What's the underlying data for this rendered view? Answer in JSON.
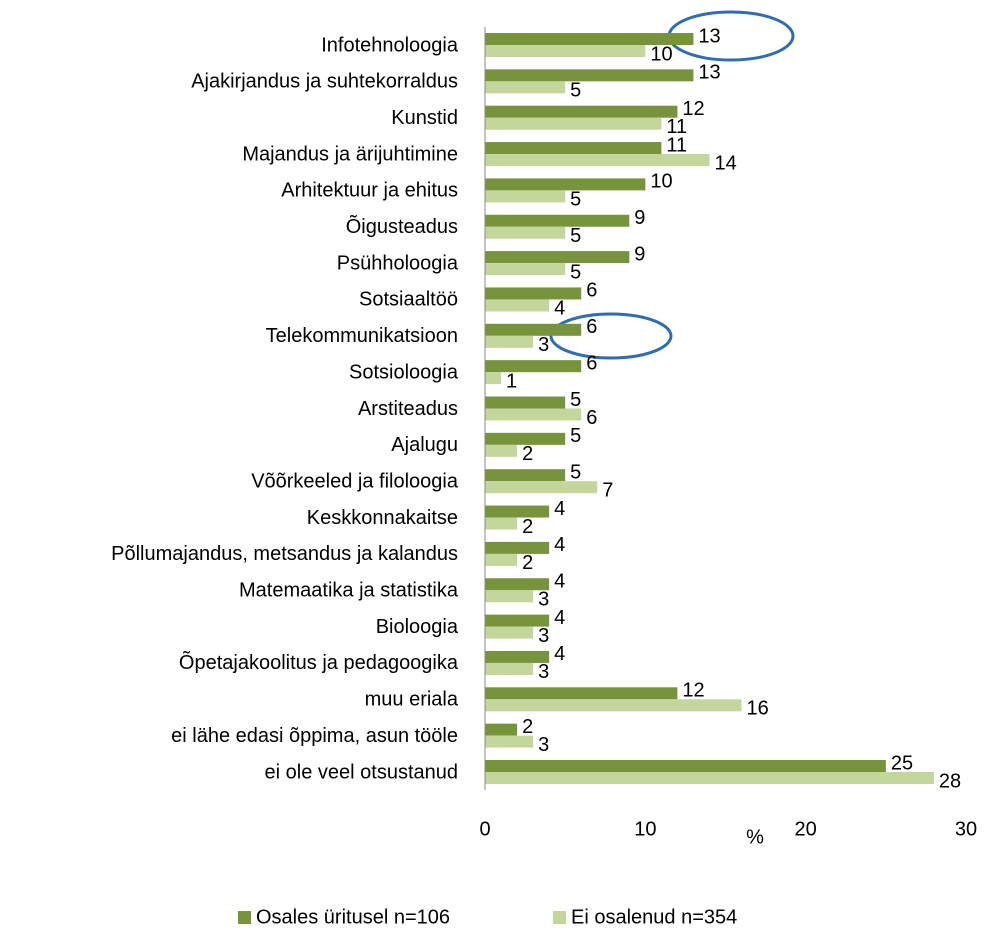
{
  "chart_data": {
    "type": "bar",
    "orientation": "horizontal",
    "categories": [
      "Infotehnoloogia",
      "Ajakirjandus ja suhtekorraldus",
      "Kunstid",
      "Majandus ja ärijuhtimine",
      "Arhitektuur ja ehitus",
      "Õigusteadus",
      "Psühholoogia",
      "Sotsiaaltöö",
      "Telekommunikatsioon",
      "Sotsioloogia",
      "Arstiteadus",
      "Ajalugu",
      "Võõrkeeled ja filoloogia",
      "Keskkonnakaitse",
      "Põllumajandus, metsandus ja kalandus",
      "Matemaatika ja statistika",
      "Bioloogia",
      "Õpetajakoolitus ja pedagoogika",
      "muu eriala",
      "ei lähe edasi õppima, asun tööle",
      "ei ole veel otsustanud"
    ],
    "series": [
      {
        "name": "Osales üritusel n=106",
        "color": "#77933c",
        "values": [
          13,
          13,
          12,
          11,
          10,
          9,
          9,
          6,
          6,
          6,
          5,
          5,
          5,
          4,
          4,
          4,
          4,
          4,
          12,
          2,
          25
        ]
      },
      {
        "name": "Ei osalenud n=354",
        "color": "#c3d69b",
        "values": [
          10,
          5,
          11,
          14,
          5,
          5,
          5,
          4,
          3,
          1,
          6,
          2,
          7,
          2,
          2,
          3,
          3,
          3,
          16,
          3,
          28
        ]
      }
    ],
    "xlabel": "%",
    "xlim": [
      0,
      30
    ],
    "xticks": [
      0,
      10,
      20,
      30
    ],
    "legend": "bottom"
  }
}
